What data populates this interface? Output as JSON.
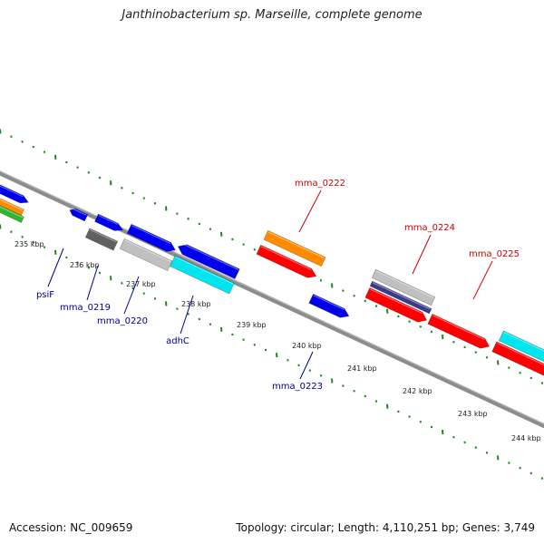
{
  "title": "Janthinobacterium sp. Marseille, complete genome",
  "footer": {
    "accession": "Accession: NC_009659",
    "summary": "Topology: circular; Length: 4,110,251 bp; Genes: 3,749"
  },
  "colors": {
    "backbone": "#8c8c8c",
    "ticks": "#1e8a1e",
    "forward_label": "#cc0000",
    "reverse_label": "#00008b",
    "blue": "#0000ee",
    "red": "#ff0000",
    "orange": "#ff8c00",
    "cyan": "#00e5ee",
    "silver": "#c0c0c0",
    "darkgray": "#606060",
    "navy": "#3a3a8c",
    "green": "#2db82d"
  },
  "scale_labels": [
    "235 kbp",
    "236 kbp",
    "237 kbp",
    "238 kbp",
    "239 kbp",
    "240 kbp",
    "241 kbp",
    "242 kbp",
    "243 kbp",
    "244 kbp"
  ],
  "gene_labels": {
    "forward": [
      "mma_0222",
      "mma_0224",
      "mma_0225"
    ],
    "reverse": [
      "psiF",
      "mma_0219",
      "mma_0220",
      "adhC",
      "mma_0223"
    ]
  },
  "features": [
    {
      "name": "gene-left-blue",
      "color": "blue"
    },
    {
      "name": "gene-left-orange",
      "color": "orange"
    },
    {
      "name": "gene-left-green",
      "color": "green"
    },
    {
      "name": "gene-psif",
      "color": "blue"
    },
    {
      "name": "gene-small-blue",
      "color": "blue"
    },
    {
      "name": "gene-mma0219",
      "color": "darkgray"
    },
    {
      "name": "gene-blue-upper",
      "color": "blue"
    },
    {
      "name": "gene-mma0220",
      "color": "silver"
    },
    {
      "name": "gene-blue-mid",
      "color": "blue"
    },
    {
      "name": "gene-adhc",
      "color": "cyan"
    },
    {
      "name": "gene-mma0222-orange",
      "color": "orange"
    },
    {
      "name": "gene-mma0222-red",
      "color": "red"
    },
    {
      "name": "gene-mma0223",
      "color": "blue"
    },
    {
      "name": "gene-mma0224-silver",
      "color": "silver"
    },
    {
      "name": "gene-mma0224-navy",
      "color": "navy"
    },
    {
      "name": "gene-red-a",
      "color": "red"
    },
    {
      "name": "gene-red-b",
      "color": "red"
    },
    {
      "name": "gene-cyan-right",
      "color": "cyan"
    },
    {
      "name": "gene-red-right",
      "color": "red"
    }
  ]
}
